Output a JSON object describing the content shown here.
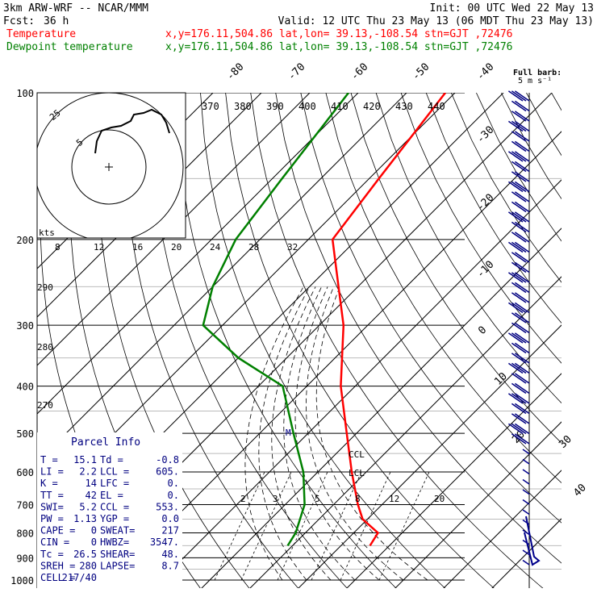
{
  "header": {
    "model": "3km ARW-WRF -- NCAR/MMM",
    "init": "Init: 00 UTC Wed 22 May 13",
    "fcst_label": "Fcst:",
    "fcst_value": "36 h",
    "valid": "Valid: 12 UTC Thu 23 May 13 (06 MDT Thu 23 May 13)"
  },
  "legend": [
    {
      "label": "Temperature",
      "info": "x,y=176.11,504.86   lat,lon= 39.13,-108.54   stn=GJT ,72476",
      "color": "#ff0000"
    },
    {
      "label": "Dewpoint temperature",
      "info": "x,y=176.11,504.86   lat,lon= 39.13,-108.54   stn=GJT ,72476",
      "color": "#008000"
    }
  ],
  "full_barb": {
    "line1": "Full barb:",
    "line2": "5 m s⁻¹"
  },
  "hodograph": {
    "kts_label": "kts",
    "ring_labels": [
      "5",
      "25"
    ]
  },
  "parcel_info": {
    "title": "Parcel Info",
    "rows": [
      [
        "T  =",
        "15.1",
        "Td =",
        "-0.8"
      ],
      [
        "LI =",
        "2.2",
        "LCL =",
        "605."
      ],
      [
        "K  =",
        "14",
        "LFC =",
        "0."
      ],
      [
        "TT =",
        "42",
        "EL =",
        "0."
      ],
      [
        "SWI=",
        "5.2",
        "CCL =",
        "553."
      ],
      [
        "PW =",
        "1.13",
        "YGP =",
        "0.0"
      ],
      [
        "CAPE =",
        "0",
        "SWEAT=",
        "217"
      ],
      [
        "CIN =",
        "0",
        "HWBZ=",
        "3547."
      ],
      [
        "Tc =",
        "26.5",
        "SHEAR=",
        "48."
      ],
      [
        "SREH =",
        "280",
        "LAPSE=",
        "8.7"
      ],
      [
        "CELL =",
        "217/40",
        "",
        ""
      ]
    ]
  },
  "markers": {
    "ccl": "CCL",
    "lcl": "LCL",
    "m": "M"
  },
  "chart_data": {
    "type": "skew-t",
    "pressure_levels": [
      100,
      200,
      300,
      400,
      500,
      600,
      700,
      800,
      900,
      1000
    ],
    "pressure_tick_labels": [
      "100",
      "200",
      "300",
      "400",
      "500",
      "600",
      "700",
      "800",
      "900",
      "1000"
    ],
    "isotherm_labels": [
      {
        "t": -80,
        "label": "-80"
      },
      {
        "t": -70,
        "label": "-70"
      },
      {
        "t": -60,
        "label": "-60"
      },
      {
        "t": -50,
        "label": "-50"
      },
      {
        "t": -40,
        "label": "-40"
      },
      {
        "t": -30,
        "label": "-30"
      },
      {
        "t": -20,
        "label": "-20"
      },
      {
        "t": -10,
        "label": "-10"
      },
      {
        "t": 0,
        "label": "0"
      },
      {
        "t": 10,
        "label": "10"
      },
      {
        "t": 20,
        "label": "20"
      },
      {
        "t": 30,
        "label": "30"
      },
      {
        "t": 40,
        "label": "40"
      }
    ],
    "theta_e_labels": [
      "370",
      "380",
      "390",
      "400",
      "410",
      "420",
      "430",
      "440"
    ],
    "mixing_ratio_labels": [
      "2",
      "3",
      "5",
      "8",
      "12",
      "20"
    ],
    "hodo_speed_labels": [
      "8",
      "12",
      "16",
      "20",
      "24",
      "28",
      "32"
    ],
    "dry_adiabat_labels": [
      "290",
      "280",
      "270"
    ],
    "temperature": [
      {
        "p": 850,
        "t": 16
      },
      {
        "p": 800,
        "t": 15
      },
      {
        "p": 750,
        "t": 9
      },
      {
        "p": 700,
        "t": 5
      },
      {
        "p": 600,
        "t": -3
      },
      {
        "p": 500,
        "t": -12
      },
      {
        "p": 400,
        "t": -23
      },
      {
        "p": 300,
        "t": -35
      },
      {
        "p": 250,
        "t": -44
      },
      {
        "p": 200,
        "t": -55
      },
      {
        "p": 150,
        "t": -58
      },
      {
        "p": 100,
        "t": -62
      }
    ],
    "dewpoint": [
      {
        "p": 850,
        "t": -1
      },
      {
        "p": 800,
        "t": -2
      },
      {
        "p": 700,
        "t": -6
      },
      {
        "p": 600,
        "t": -13
      },
      {
        "p": 500,
        "t": -23
      },
      {
        "p": 400,
        "t": -35
      },
      {
        "p": 350,
        "t": -50
      },
      {
        "p": 300,
        "t": -64
      },
      {
        "p": 250,
        "t": -70
      },
      {
        "p": 200,
        "t": -75
      },
      {
        "p": 150,
        "t": -78
      },
      {
        "p": 100,
        "t": -82
      }
    ]
  }
}
